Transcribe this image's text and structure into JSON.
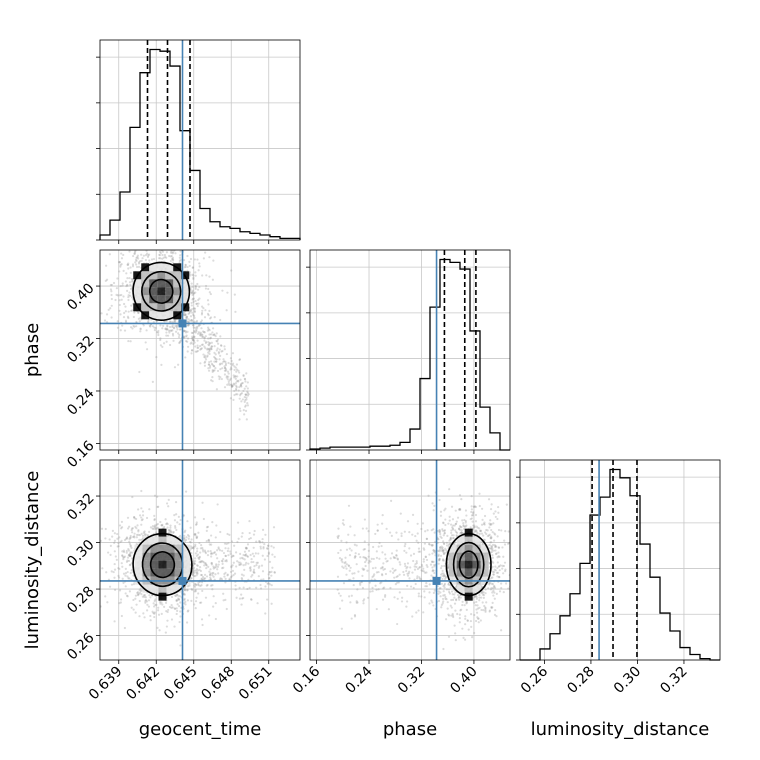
{
  "chart_data": {
    "type": "corner",
    "parameters": [
      {
        "name": "geocent_time",
        "label": "geocent_time",
        "range": [
          0.6375,
          0.6535
        ],
        "ticks": [
          0.639,
          0.642,
          0.645,
          0.648,
          0.651
        ],
        "tick_labels": [
          "0.639",
          "0.642",
          "0.645",
          "0.648",
          "0.651"
        ],
        "truth": 0.6441,
        "quantiles": [
          0.6413,
          0.6429,
          0.6447
        ],
        "median": 0.6429
      },
      {
        "name": "phase",
        "label": "phase",
        "range": [
          0.15,
          0.455
        ],
        "ticks": [
          0.16,
          0.24,
          0.32,
          0.4
        ],
        "tick_labels": [
          "0.16",
          "0.24",
          "0.32",
          "0.40"
        ],
        "truth": 0.343,
        "quantiles": [
          0.355,
          0.386,
          0.403
        ],
        "median": 0.386
      },
      {
        "name": "luminosity_distance",
        "label": "luminosity_distance",
        "range": [
          0.2495,
          0.3355
        ],
        "ticks": [
          0.26,
          0.28,
          0.3,
          0.32
        ],
        "tick_labels": [
          "0.26",
          "0.28",
          "0.30",
          "0.32"
        ],
        "truth": 0.2835,
        "quantiles": [
          0.2805,
          0.2895,
          0.2998
        ],
        "median": 0.2895
      }
    ],
    "histograms": [
      {
        "parameter": "geocent_time",
        "bins": 20,
        "counts": [
          3,
          12,
          29,
          68,
          101,
          115,
          114,
          105,
          66,
          42,
          19,
          11,
          8,
          7,
          5,
          4,
          3,
          2,
          1,
          1
        ]
      },
      {
        "parameter": "phase",
        "bins": 20,
        "counts": [
          1,
          2,
          3,
          3,
          3,
          3,
          4,
          4,
          5,
          8,
          22,
          75,
          150,
          200,
          197,
          190,
          125,
          45,
          18,
          0
        ]
      },
      {
        "parameter": "luminosity_distance",
        "bins": 20,
        "counts": [
          0,
          0,
          8,
          19,
          32,
          48,
          70,
          105,
          118,
          138,
          132,
          119,
          84,
          60,
          34,
          21,
          9,
          4,
          1,
          0
        ]
      }
    ],
    "pairs": [
      {
        "x": "geocent_time",
        "y": "phase",
        "mode": [
          0.6424,
          0.392
        ],
        "contours": [
          {
            "rx": 0.00092,
            "ry": 0.018,
            "rot": -15
          },
          {
            "rx": 0.00155,
            "ry": 0.03,
            "rot": -12
          },
          {
            "rx": 0.00225,
            "ry": 0.044,
            "rot": -10
          }
        ]
      },
      {
        "x": "geocent_time",
        "y": "luminosity_distance",
        "mode": [
          0.6425,
          0.2905
        ],
        "contours": [
          {
            "rx": 0.00095,
            "ry": 0.0055,
            "rot": -5
          },
          {
            "rx": 0.0016,
            "ry": 0.0093,
            "rot": -5
          },
          {
            "rx": 0.00235,
            "ry": 0.0133,
            "rot": -5
          }
        ]
      },
      {
        "x": "phase",
        "y": "luminosity_distance",
        "mode": [
          0.392,
          0.2905
        ],
        "contours": [
          {
            "rx": 0.014,
            "ry": 0.0058,
            "rot": 0
          },
          {
            "rx": 0.023,
            "ry": 0.0095,
            "rot": 0
          },
          {
            "rx": 0.034,
            "ry": 0.0133,
            "rot": 0
          }
        ]
      }
    ],
    "grid": true,
    "colors": {
      "truth": "#4682b4",
      "hist": "#000000",
      "contour": "#000000",
      "points": "#9a9a9a",
      "grid": "#c8c8c8"
    }
  }
}
